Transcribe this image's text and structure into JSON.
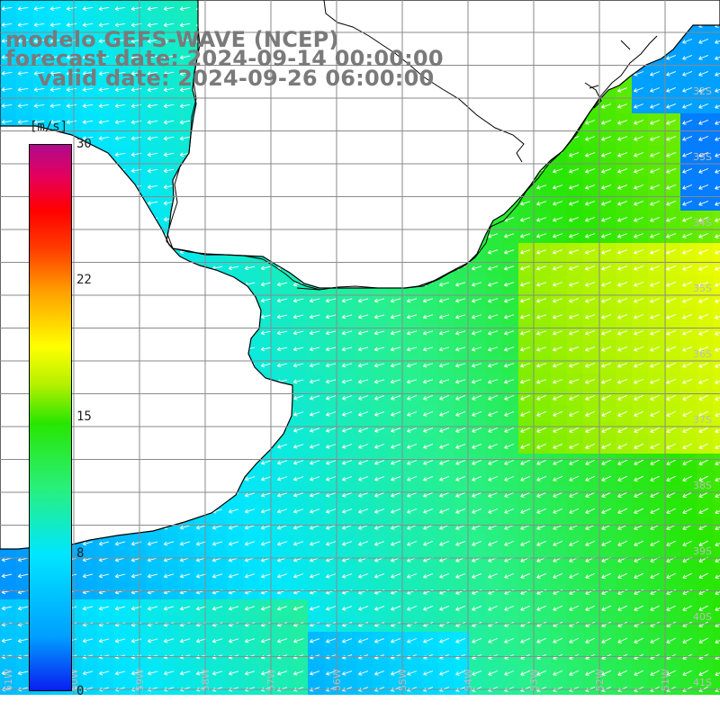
{
  "header": {
    "model": "modelo GEFS-WAVE (NCEP)",
    "forecast": "forecast date: 2024-09-14 00:00:00",
    "valid": "valid date: 2024-09-26 06:00:00"
  },
  "colorbar": {
    "unit": "[m/s]",
    "ticks": [
      "30",
      "22",
      "15",
      "8",
      "0"
    ],
    "tick_values": [
      30,
      22,
      15,
      8,
      0
    ],
    "colors": [
      "#0a1ef0",
      "#00a0ff",
      "#00e6ff",
      "#28f07c",
      "#28e600",
      "#b4f000",
      "#ffff00",
      "#ffa000",
      "#ff3c00",
      "#ff0000",
      "#b00a8c"
    ]
  },
  "map": {
    "lat_labels": [
      "32S",
      "33S",
      "34S",
      "35S",
      "36S",
      "37S",
      "38S",
      "39S",
      "40S",
      "41S"
    ],
    "lon_labels": [
      "61W",
      "60W",
      "59W",
      "58W",
      "57W",
      "56W",
      "55W",
      "54W",
      "53W",
      "52W",
      "51W"
    ],
    "land_color": "#ffffff",
    "grid_color": "#808080",
    "arrow_color": "#ffffff"
  }
}
